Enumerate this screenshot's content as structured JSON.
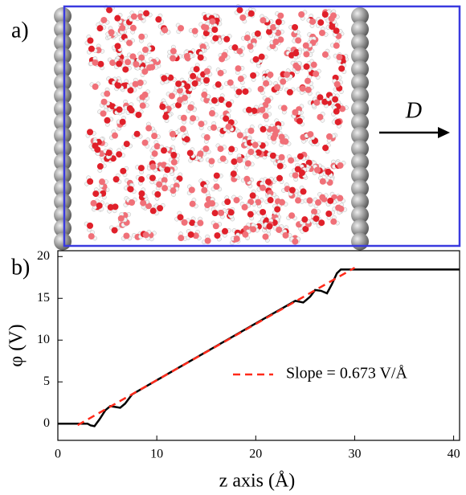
{
  "panel_a": {
    "label": "a)",
    "arrow_label": "D"
  },
  "chart_data": {
    "type": "line",
    "panel_label": "b)",
    "x_label": "z axis (Å)",
    "y_label": "φ (V)",
    "xlim": [
      0,
      40.6
    ],
    "ylim": [
      -2,
      20.7
    ],
    "xticks": [
      0,
      10,
      20,
      30,
      40
    ],
    "yticks": [
      0,
      5,
      10,
      15,
      20
    ],
    "grid": false,
    "legend": "right",
    "series": [
      {
        "color": "#000000",
        "style": "solid",
        "x": [
          0,
          2,
          3,
          3.3,
          3.7,
          4.2,
          4.8,
          5.3,
          5.8,
          6.3,
          6.8,
          7.5,
          10,
          15,
          20,
          24,
          24.8,
          25.5,
          26,
          26.6,
          27.2,
          27.7,
          28.2,
          28.6,
          41
        ],
        "values": [
          0,
          0,
          0,
          -0.2,
          -0.3,
          0.5,
          1.6,
          2.1,
          2.0,
          1.9,
          2.4,
          3.5,
          5.2,
          8.6,
          12.0,
          14.7,
          14.5,
          15.2,
          16.0,
          15.9,
          15.6,
          16.7,
          18.0,
          18.45,
          18.45
        ]
      },
      {
        "name": "Slope = 0.673 V/Å",
        "color": "#ff2a1a",
        "style": "dashed",
        "x": [
          2,
          30
        ],
        "values": [
          -0.18,
          18.66
        ]
      }
    ]
  }
}
